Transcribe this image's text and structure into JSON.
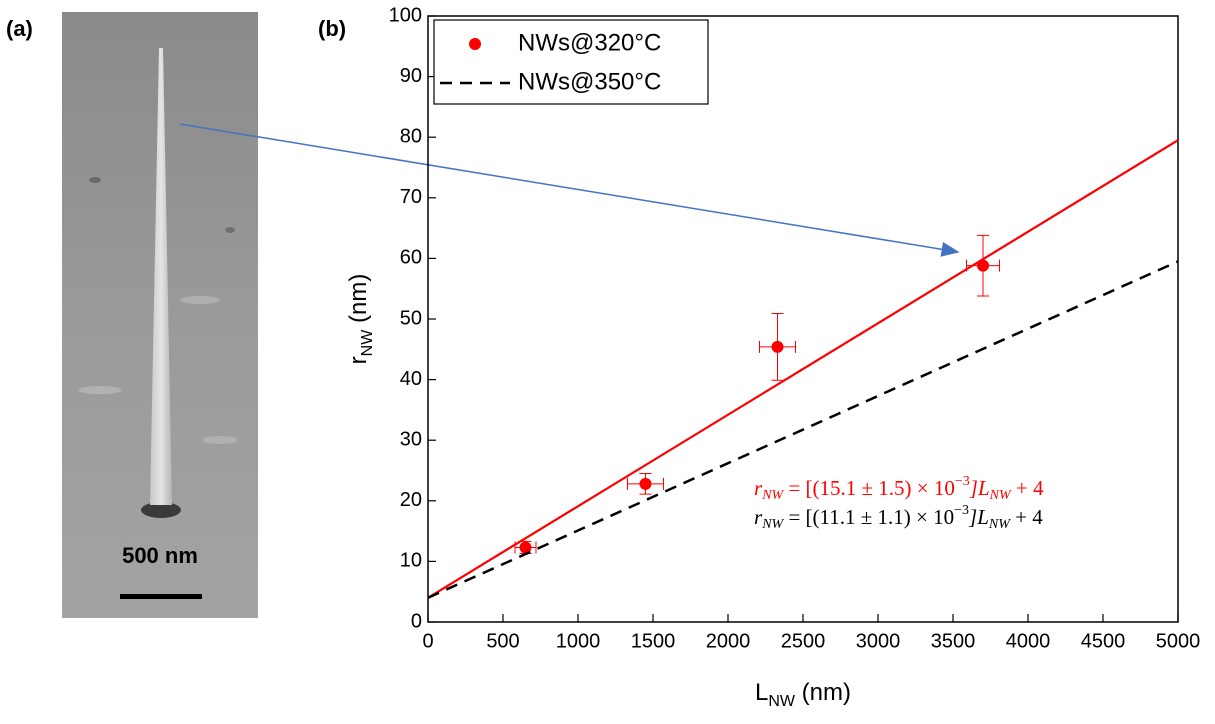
{
  "panel_a": {
    "label": "(a)",
    "scale_bar": "500 nm"
  },
  "chart_data": {
    "type": "scatter",
    "panel_label": "(b)",
    "x_label": {
      "main": "L",
      "sub": "NW",
      "unit": " (nm)"
    },
    "y_label": {
      "main": "r",
      "sub": "NW",
      "unit": " (nm)"
    },
    "xlim": [
      0,
      5000
    ],
    "ylim": [
      0,
      100
    ],
    "xticks": [
      0,
      500,
      1000,
      1500,
      2000,
      2500,
      3000,
      3500,
      4000,
      4500,
      5000
    ],
    "yticks": [
      0,
      10,
      20,
      30,
      40,
      50,
      60,
      70,
      80,
      90,
      100
    ],
    "legend": "top-left",
    "series": [
      {
        "name": "NWs@320°C",
        "type": "scatter",
        "color": "#ff0000",
        "x": [
          650,
          1450,
          2330,
          3700
        ],
        "values": [
          12.3,
          22.8,
          45.4,
          58.8
        ],
        "errors": [
          1,
          1.7,
          5.5,
          5
        ],
        "x_errors": [
          70,
          120,
          120,
          110
        ]
      },
      {
        "name": "NWs@350°C",
        "type": "line",
        "dashed": true,
        "color": "#000000",
        "x": [
          0,
          5000
        ],
        "values": [
          4,
          59.5
        ]
      }
    ],
    "fit_line": {
      "color": "#ff0000",
      "x": [
        0,
        5000
      ],
      "values": [
        4,
        79.5
      ]
    },
    "equations": [
      {
        "color": "#ff0000",
        "parts": [
          "r",
          "NW",
          " = [(15.1 ± 1.5) × 10",
          "−3",
          "]L",
          "NW",
          " + 4"
        ]
      },
      {
        "color": "#000000",
        "parts": [
          "r",
          "NW",
          " = [(11.1 ± 1.1) × 10",
          "−3",
          "]L",
          "NW",
          " + 4"
        ]
      }
    ]
  }
}
